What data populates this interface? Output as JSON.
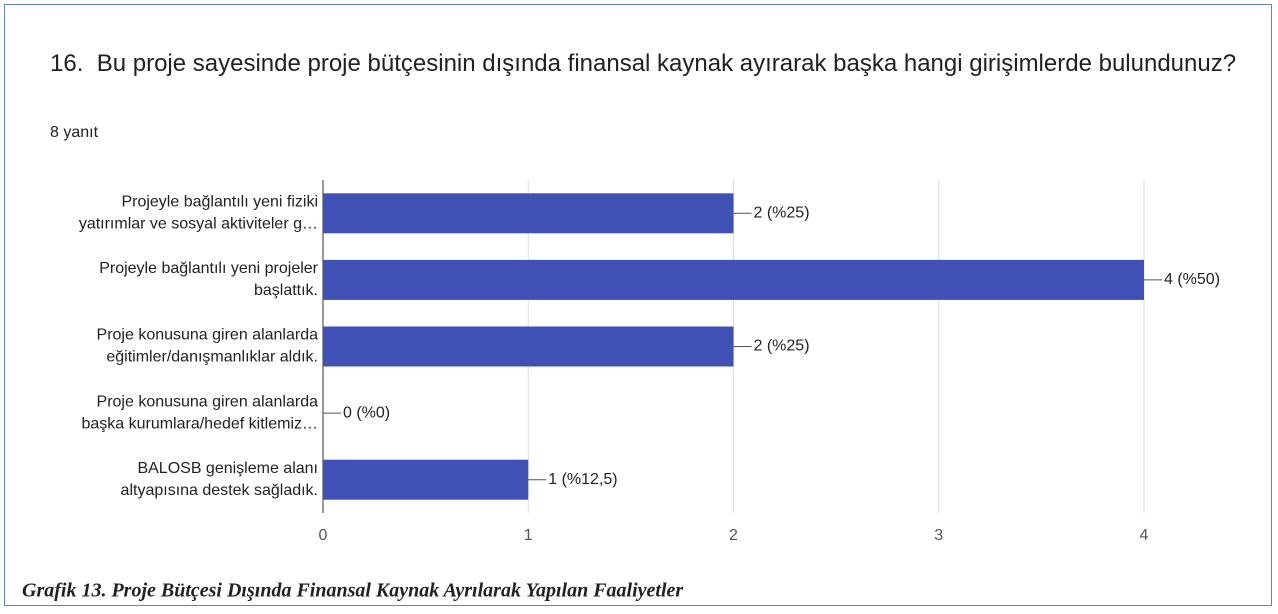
{
  "chart_data": {
    "type": "bar",
    "orientation": "horizontal",
    "title": "16.  Bu proje sayesinde proje bütçesinin dışında finansal kaynak ayırarak başka hangi girişimlerde bulundunuz?",
    "subtitle": "8 yanıt",
    "caption": "Grafik 13. Proje Bütçesi Dışında Finansal Kaynak Ayrılarak Yapılan Faaliyetler",
    "categories": [
      [
        "Projeyle bağlantılı yeni fiziki",
        "yatırımlar ve sosyal aktiviteler g…"
      ],
      [
        "Projeyle bağlantılı yeni projeler",
        "başlattık."
      ],
      [
        "Proje konusuna giren alanlarda",
        "eğitimler/danışmanlıklar aldık."
      ],
      [
        "Proje konusuna giren alanlarda",
        "başka kurumlara/hedef kitlemiz…"
      ],
      [
        "BALOSB genişleme alanı",
        "altyapısına destek sağladık."
      ]
    ],
    "values": [
      2,
      4,
      2,
      0,
      1
    ],
    "value_labels": [
      "2 (%25)",
      "4 (%50)",
      "2 (%25)",
      "0 (%0)",
      "1 (%12,5)"
    ],
    "color": "#3f51b5",
    "xlim": [
      0,
      4
    ],
    "xticks": [
      0,
      1,
      2,
      3,
      4
    ],
    "grid": true
  }
}
